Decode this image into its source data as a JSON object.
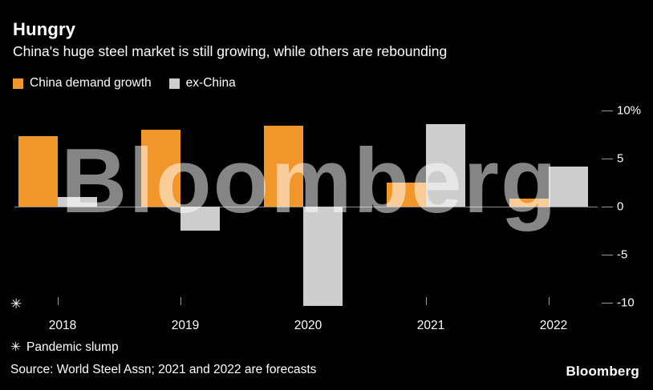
{
  "header": {
    "title": "Hungry",
    "subtitle": "China's huge steel market is still growing, while others are rebounding"
  },
  "legend": [
    {
      "label": "China demand growth",
      "color": "#f0962b"
    },
    {
      "label": "ex-China",
      "color": "#cdcdcd"
    }
  ],
  "chart_data": {
    "type": "bar",
    "categories": [
      "2018",
      "2019",
      "2020",
      "2021",
      "2022"
    ],
    "series": [
      {
        "name": "China demand growth",
        "color": "#f0962b",
        "values": [
          7.3,
          8.0,
          8.4,
          2.5,
          0.8
        ]
      },
      {
        "name": "ex-China",
        "color": "#cdcdcd",
        "values": [
          1.0,
          -2.5,
          -10.3,
          8.6,
          4.2
        ]
      }
    ],
    "ylabel_ticks": [
      "10%",
      "5",
      "0",
      "-5",
      "-10"
    ],
    "tick_values": [
      10,
      5,
      0,
      -5,
      -10
    ],
    "ylim": [
      -11,
      10.5
    ],
    "xlabel": "",
    "ylabel": "",
    "grid": false,
    "legend_position": "top-left",
    "annotation_marker": "✳"
  },
  "watermark": "Bloomberg",
  "footnote": {
    "marker": "✳",
    "text": "Pandemic slump"
  },
  "source": "Source: World Steel Assn; 2021 and 2022 are forecasts",
  "brand": "Bloomberg"
}
